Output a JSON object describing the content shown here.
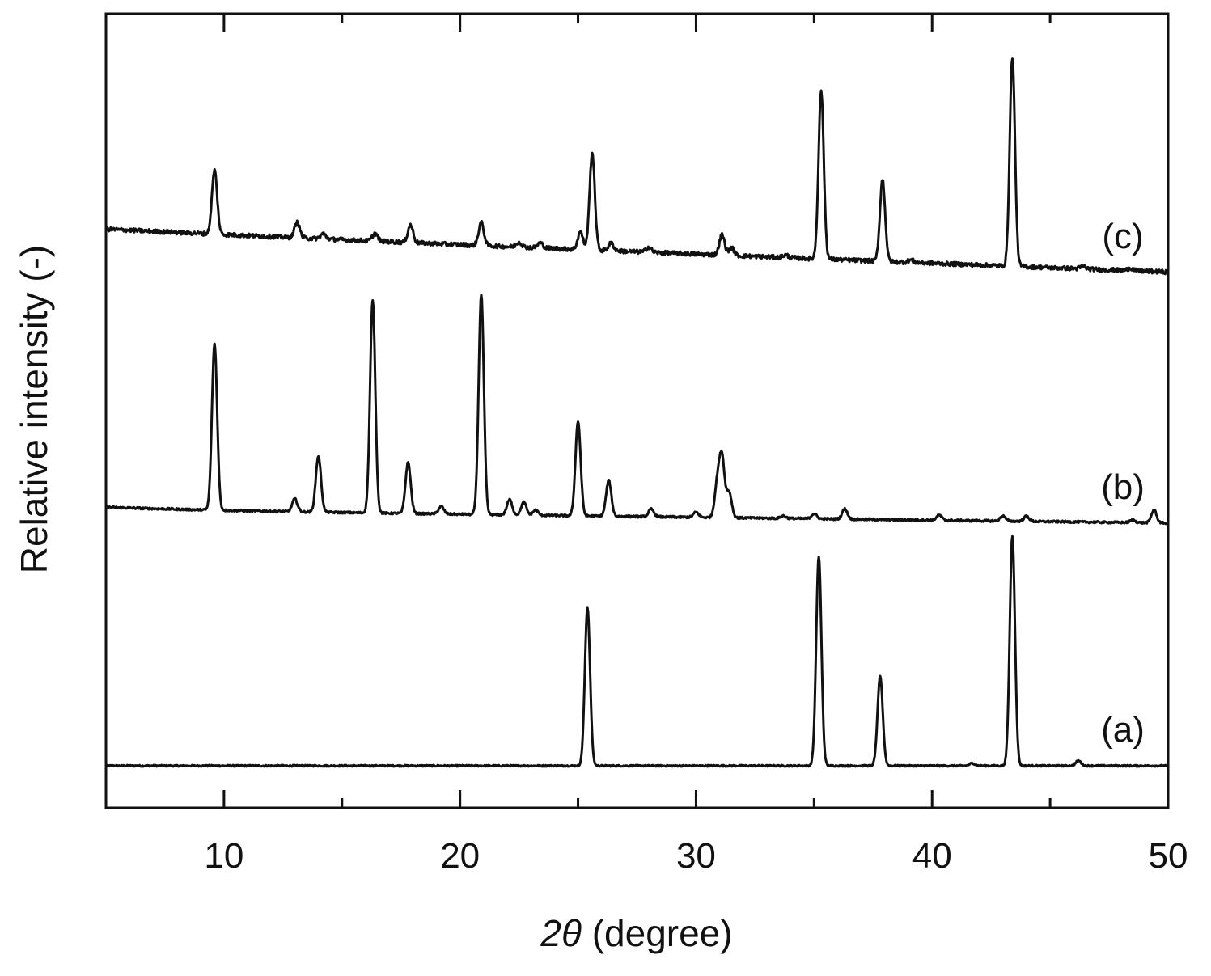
{
  "chart_data": {
    "type": "line",
    "title": "",
    "xlabel": {
      "math_symbol": "2θ",
      "rest": " (degree)"
    },
    "ylabel": "Relative intensity (-)",
    "xlim": [
      5,
      50
    ],
    "x_ticks": [
      10,
      20,
      30,
      40,
      50
    ],
    "x_minor_ticks": [
      15,
      25,
      35,
      45
    ],
    "y_ticks_shown": false,
    "grid": false,
    "legend": "none",
    "line_color": "#111111",
    "series": [
      {
        "name": "(a)",
        "baseline_start": 0.0,
        "baseline_end": 0.0,
        "noise": 0.003,
        "peaks": [
          {
            "x": 25.4,
            "height": 0.62
          },
          {
            "x": 35.2,
            "height": 0.82
          },
          {
            "x": 37.8,
            "height": 0.35
          },
          {
            "x": 41.7,
            "height": 0.01
          },
          {
            "x": 43.4,
            "height": 0.9
          },
          {
            "x": 46.2,
            "height": 0.02
          }
        ]
      },
      {
        "name": "(b)",
        "baseline_start": 1.0,
        "baseline_end": 0.95,
        "noise": 0.004,
        "peaks": [
          {
            "x": 9.6,
            "height": 0.65
          },
          {
            "x": 13.0,
            "height": 0.05
          },
          {
            "x": 14.0,
            "height": 0.22
          },
          {
            "x": 16.3,
            "height": 0.83
          },
          {
            "x": 17.8,
            "height": 0.2
          },
          {
            "x": 19.2,
            "height": 0.03
          },
          {
            "x": 20.9,
            "height": 0.86
          },
          {
            "x": 22.1,
            "height": 0.06
          },
          {
            "x": 22.7,
            "height": 0.05
          },
          {
            "x": 23.2,
            "height": 0.02
          },
          {
            "x": 25.0,
            "height": 0.37
          },
          {
            "x": 26.3,
            "height": 0.14
          },
          {
            "x": 28.1,
            "height": 0.03
          },
          {
            "x": 30.0,
            "height": 0.02
          },
          {
            "x": 30.9,
            "height": 0.13
          },
          {
            "x": 31.1,
            "height": 0.23
          },
          {
            "x": 31.4,
            "height": 0.1
          },
          {
            "x": 33.7,
            "height": 0.01
          },
          {
            "x": 35.0,
            "height": 0.02
          },
          {
            "x": 36.3,
            "height": 0.04
          },
          {
            "x": 40.3,
            "height": 0.02
          },
          {
            "x": 43.0,
            "height": 0.02
          },
          {
            "x": 44.0,
            "height": 0.02
          },
          {
            "x": 48.5,
            "height": 0.01
          },
          {
            "x": 49.4,
            "height": 0.05
          }
        ]
      },
      {
        "name": "(c)",
        "baseline_start": 2.08,
        "baseline_end": 1.93,
        "noise": 0.008,
        "peaks": [
          {
            "x": 9.6,
            "height": 0.25
          },
          {
            "x": 13.1,
            "height": 0.06
          },
          {
            "x": 14.2,
            "height": 0.02
          },
          {
            "x": 16.4,
            "height": 0.03
          },
          {
            "x": 17.9,
            "height": 0.07
          },
          {
            "x": 20.9,
            "height": 0.09
          },
          {
            "x": 22.5,
            "height": 0.02
          },
          {
            "x": 23.4,
            "height": 0.02
          },
          {
            "x": 25.1,
            "height": 0.07
          },
          {
            "x": 25.6,
            "height": 0.38
          },
          {
            "x": 26.4,
            "height": 0.03
          },
          {
            "x": 28.0,
            "height": 0.02
          },
          {
            "x": 31.1,
            "height": 0.08
          },
          {
            "x": 31.5,
            "height": 0.03
          },
          {
            "x": 33.8,
            "height": 0.01
          },
          {
            "x": 35.3,
            "height": 0.66
          },
          {
            "x": 37.9,
            "height": 0.32
          },
          {
            "x": 39.1,
            "height": 0.01
          },
          {
            "x": 43.4,
            "height": 0.82
          },
          {
            "x": 46.4,
            "height": 0.01
          },
          {
            "x": 48.4,
            "height": 0.01
          }
        ]
      }
    ]
  }
}
